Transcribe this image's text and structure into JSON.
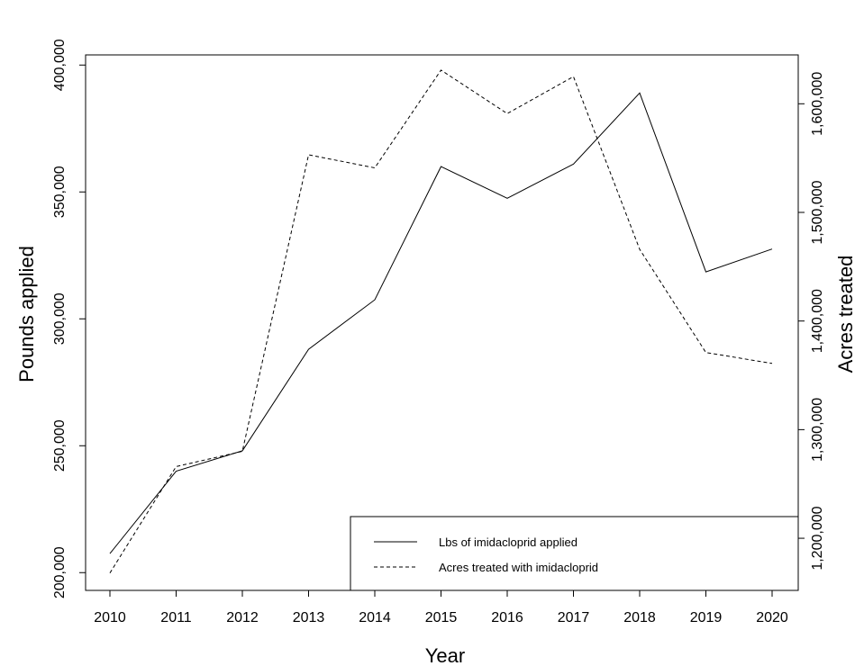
{
  "chart_data": {
    "type": "line",
    "title": "",
    "xlabel": "Year",
    "ylabel_left": "Pounds applied",
    "ylabel_right": "Acres treated",
    "x": [
      2010,
      2011,
      2012,
      2013,
      2014,
      2015,
      2016,
      2017,
      2018,
      2019,
      2020
    ],
    "x_tick_labels": [
      "2010",
      "2011",
      "2012",
      "2013",
      "2014",
      "2015",
      "2016",
      "2017",
      "2018",
      "2019",
      "2020"
    ],
    "y_left_ticks": [
      200000,
      250000,
      300000,
      350000,
      400000
    ],
    "y_left_tick_labels": [
      "200,000",
      "250,000",
      "300,000",
      "350,000",
      "400,000"
    ],
    "y_left_range": [
      193000,
      404000
    ],
    "y_right_ticks": [
      1200000,
      1300000,
      1400000,
      1500000,
      1600000
    ],
    "y_right_tick_labels": [
      "1,200,000",
      "1,300,000",
      "1,400,000",
      "1,500,000",
      "1,600,000"
    ],
    "y_right_range": [
      1152000,
      1645000
    ],
    "series": [
      {
        "name": "Lbs of imidacloprid  applied",
        "axis": "left",
        "line_style": "solid",
        "values": [
          207500,
          240000,
          248000,
          288000,
          307500,
          360000,
          347500,
          361000,
          389000,
          318500,
          327500
        ]
      },
      {
        "name": "Acres treated with imidacloprid",
        "axis": "right",
        "line_style": "dashed",
        "values": [
          1168000,
          1266000,
          1280000,
          1553000,
          1541000,
          1631000,
          1591000,
          1625000,
          1466000,
          1371000,
          1361000
        ]
      }
    ],
    "legend_position": "bottom-right",
    "grid": false
  }
}
